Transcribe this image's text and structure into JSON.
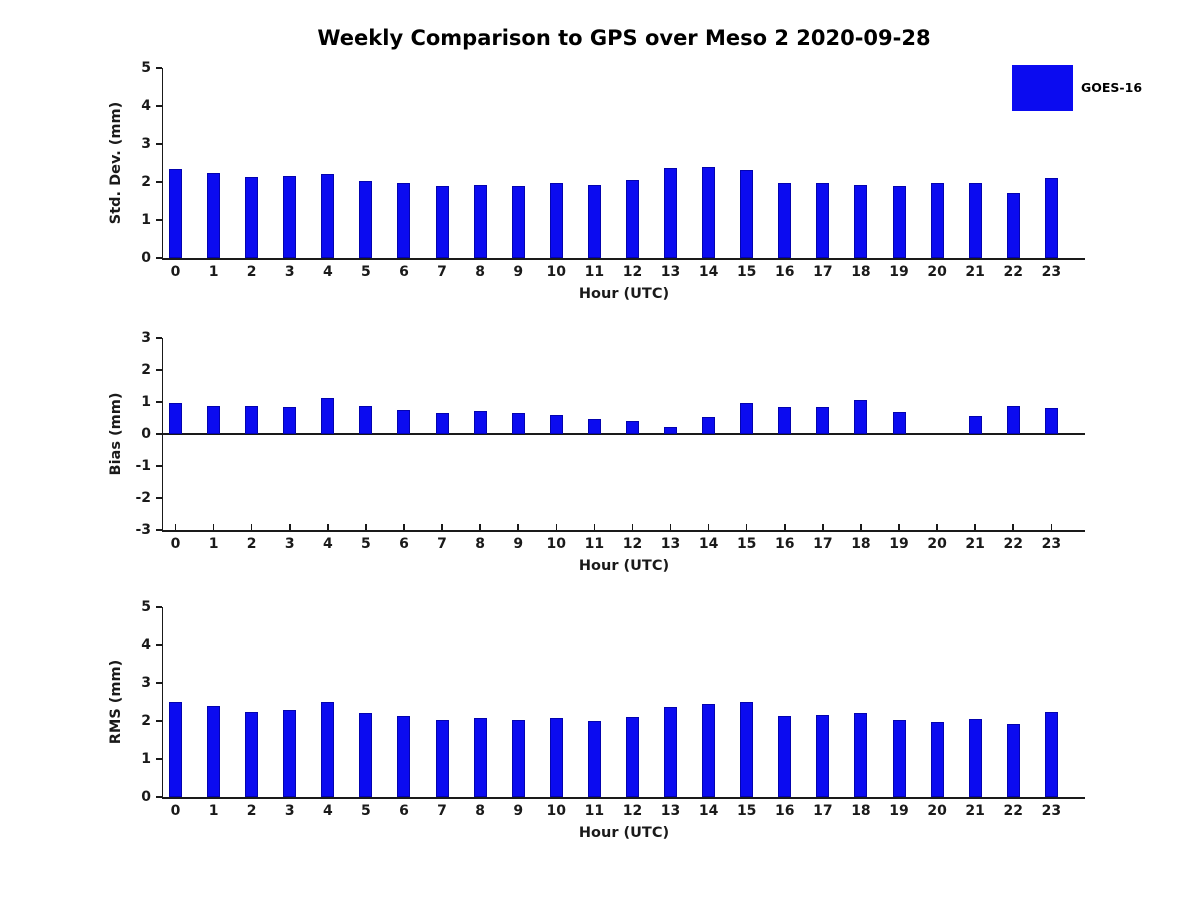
{
  "title": "Weekly Comparison to GPS over Meso 2 2020-09-28",
  "legend": {
    "label": "GOES-16",
    "color": "#0b0bf0",
    "position": "top-right"
  },
  "chart_data": [
    {
      "type": "bar",
      "name": "std-dev",
      "ylabel": "Std. Dev. (mm)",
      "xlabel": "Hour (UTC)",
      "ylim": [
        0,
        5
      ],
      "yticks": [
        0,
        1,
        2,
        3,
        4,
        5
      ],
      "grid": false,
      "bar_color": "#0b0bf0",
      "categories": [
        "0",
        "1",
        "2",
        "3",
        "4",
        "5",
        "6",
        "7",
        "8",
        "9",
        "10",
        "11",
        "12",
        "13",
        "14",
        "15",
        "16",
        "17",
        "18",
        "19",
        "20",
        "21",
        "22",
        "23"
      ],
      "series": [
        {
          "name": "GOES-16",
          "values": [
            2.35,
            2.25,
            2.12,
            2.17,
            2.22,
            2.02,
            1.98,
            1.9,
            1.93,
            1.9,
            1.98,
            1.93,
            2.06,
            2.37,
            2.4,
            2.32,
            1.98,
            1.98,
            1.93,
            1.9,
            1.98,
            1.98,
            1.72,
            2.1
          ]
        }
      ]
    },
    {
      "type": "bar",
      "name": "bias",
      "ylabel": "Bias (mm)",
      "xlabel": "Hour (UTC)",
      "ylim": [
        -3,
        3
      ],
      "yticks": [
        -3,
        -2,
        -1,
        0,
        1,
        2,
        3
      ],
      "grid": false,
      "bar_color": "#0b0bf0",
      "categories": [
        "0",
        "1",
        "2",
        "3",
        "4",
        "5",
        "6",
        "7",
        "8",
        "9",
        "10",
        "11",
        "12",
        "13",
        "14",
        "15",
        "16",
        "17",
        "18",
        "19",
        "20",
        "21",
        "22",
        "23"
      ],
      "series": [
        {
          "name": "GOES-16",
          "values": [
            0.97,
            0.87,
            0.87,
            0.83,
            1.13,
            0.89,
            0.76,
            0.66,
            0.72,
            0.66,
            0.58,
            0.48,
            0.42,
            0.23,
            0.52,
            0.98,
            0.85,
            0.84,
            1.05,
            0.7,
            0.0,
            0.55,
            0.87,
            0.82
          ]
        }
      ]
    },
    {
      "type": "bar",
      "name": "rms",
      "ylabel": "RMS (mm)",
      "xlabel": "Hour (UTC)",
      "ylim": [
        0,
        5
      ],
      "yticks": [
        0,
        1,
        2,
        3,
        4,
        5
      ],
      "grid": false,
      "bar_color": "#0b0bf0",
      "categories": [
        "0",
        "1",
        "2",
        "3",
        "4",
        "5",
        "6",
        "7",
        "8",
        "9",
        "10",
        "11",
        "12",
        "13",
        "14",
        "15",
        "16",
        "17",
        "18",
        "19",
        "20",
        "21",
        "22",
        "23"
      ],
      "series": [
        {
          "name": "GOES-16",
          "values": [
            2.51,
            2.4,
            2.25,
            2.3,
            2.49,
            2.2,
            2.12,
            2.02,
            2.08,
            2.02,
            2.08,
            2.0,
            2.1,
            2.38,
            2.46,
            2.51,
            2.12,
            2.15,
            2.21,
            2.02,
            1.97,
            2.05,
            1.91,
            2.25
          ]
        }
      ]
    }
  ]
}
